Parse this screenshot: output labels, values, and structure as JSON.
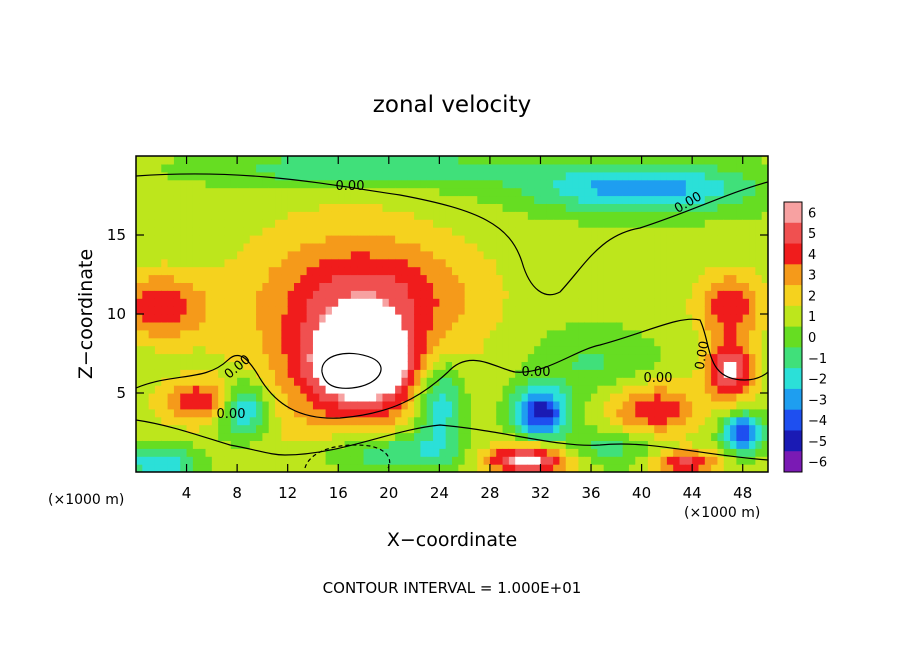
{
  "chart_data": {
    "type": "heatmap",
    "title": "zonal velocity",
    "xlabel": "X−coordinate",
    "ylabel": "Z−coordinate",
    "x_unit_label": "(×1000 m)",
    "y_unit_label": "(×1000 m)",
    "footer": "CONTOUR INTERVAL = 1.000E+01",
    "xlim": [
      0,
      50
    ],
    "ylim": [
      0,
      20
    ],
    "x_ticks": [
      4,
      8,
      12,
      16,
      20,
      24,
      28,
      32,
      36,
      40,
      44,
      48
    ],
    "x_tick_labels": [
      "4",
      "8",
      "12",
      "16",
      "20",
      "24",
      "28",
      "32",
      "36",
      "40",
      "44",
      "48"
    ],
    "y_ticks": [
      5,
      10,
      15
    ],
    "y_tick_labels": [
      "5",
      "10",
      "15"
    ],
    "colorbar": {
      "levels": [
        6,
        5,
        4,
        3,
        2,
        1,
        0,
        -1,
        -2,
        -3,
        -4,
        -5,
        -6
      ],
      "labels": [
        "6",
        "5",
        "4",
        "3",
        "2",
        "1",
        "0",
        "−1",
        "−2",
        "−3",
        "−4",
        "−5",
        "−6"
      ],
      "colors": [
        "#f7a1a1",
        "#f05050",
        "#f01c1c",
        "#f59a1a",
        "#f5d21e",
        "#bde61c",
        "#66dd22",
        "#40e07a",
        "#2be0d8",
        "#1e9ef0",
        "#1e4ff0",
        "#1a1ab4",
        "#7a1ab4"
      ]
    },
    "contour_label": "0.00",
    "contour_label_count": 7,
    "anomalies": [
      {
        "x": 17.0,
        "z": 8.0,
        "rx": 8.0,
        "rz": 7.0,
        "v": 3.0
      },
      {
        "x": 18.0,
        "z": 7.0,
        "rx": 4.0,
        "rz": 2.5,
        "v": 6.0
      },
      {
        "x": 19.0,
        "z": 11.5,
        "rx": 8.0,
        "rz": 3.0,
        "v": 2.0
      },
      {
        "x": 2.0,
        "z": 10.5,
        "rx": 3.5,
        "rz": 2.0,
        "v": 3.5
      },
      {
        "x": 5.0,
        "z": 4.5,
        "rx": 3.0,
        "rz": 1.3,
        "v": 3.5
      },
      {
        "x": 47.0,
        "z": 10.5,
        "rx": 2.5,
        "rz": 2.0,
        "v": 3.5
      },
      {
        "x": 47.0,
        "z": 6.5,
        "rx": 1.8,
        "rz": 1.8,
        "v": 5.0
      },
      {
        "x": 41.0,
        "z": 4.0,
        "rx": 3.5,
        "rz": 1.6,
        "v": 3.5
      },
      {
        "x": 31.0,
        "z": 0.8,
        "rx": 3.5,
        "rz": 1.0,
        "v": 5.5
      },
      {
        "x": 43.5,
        "z": 0.6,
        "rx": 2.5,
        "rz": 0.8,
        "v": 4.0
      },
      {
        "x": 18.0,
        "z": 19.2,
        "rx": 12.0,
        "rz": 1.2,
        "v": -2.5
      },
      {
        "x": 40.0,
        "z": 18.0,
        "rx": 9.0,
        "rz": 1.6,
        "v": -4.0
      },
      {
        "x": 32.0,
        "z": 3.8,
        "rx": 2.2,
        "rz": 1.6,
        "v": -6.0
      },
      {
        "x": 24.0,
        "z": 4.5,
        "rx": 2.0,
        "rz": 3.0,
        "v": -4.0
      },
      {
        "x": 8.5,
        "z": 4.0,
        "rx": 2.0,
        "rz": 1.8,
        "v": -4.5
      },
      {
        "x": 36.0,
        "z": 7.0,
        "rx": 5.0,
        "rz": 2.2,
        "v": -1.5
      },
      {
        "x": 20.0,
        "z": 1.2,
        "rx": 6.0,
        "rz": 1.4,
        "v": -3.0
      },
      {
        "x": 2.0,
        "z": 0.6,
        "rx": 3.0,
        "rz": 1.0,
        "v": -3.5
      },
      {
        "x": 48.0,
        "z": 2.5,
        "rx": 1.6,
        "rz": 1.2,
        "v": -5.5
      },
      {
        "x": 37.0,
        "z": 1.5,
        "rx": 4.0,
        "rz": 1.2,
        "v": -2.0
      }
    ]
  }
}
